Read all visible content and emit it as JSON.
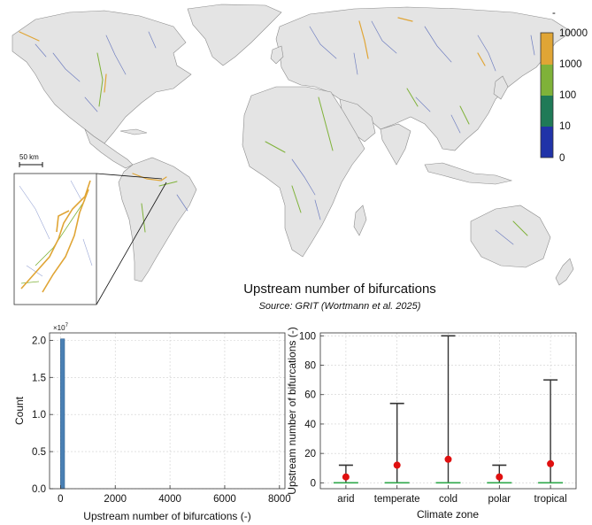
{
  "map_figure": {
    "title": "Upstream number of bifurcations",
    "source": "Source: GRIT (Wortmann et al. 2025)",
    "scale_bar_label": "50 km",
    "colorbar": {
      "labels": [
        "10000",
        "1000",
        "100",
        "10",
        "0"
      ],
      "colors": [
        "#e0a535",
        "#7fb239",
        "#1f7a57",
        "#2033a8"
      ],
      "top_mark": "-"
    },
    "colors": {
      "land": "#e4e4e4",
      "coast": "#8c8c8c",
      "river": "#6f7ec0"
    }
  },
  "chart_data": [
    {
      "type": "bar",
      "title": "",
      "xlabel": "Upstream number of bifurcations (-)",
      "ylabel": "Count",
      "y_multiplier_label": "×10",
      "y_multiplier_exponent": "7",
      "xlim": [
        -400,
        8200
      ],
      "ylim": [
        0,
        2.1
      ],
      "x_ticks": [
        0,
        2000,
        4000,
        6000,
        8000
      ],
      "x_tick_labels": [
        "0",
        "2000",
        "4000",
        "6000",
        "8000"
      ],
      "y_ticks": [
        0,
        0.5,
        1,
        1.5,
        2
      ],
      "y_tick_labels": [
        "0.0",
        "0.5",
        "1.0",
        "1.5",
        "2.0"
      ],
      "bins": [
        {
          "x_start": 0,
          "x_end": 150,
          "value": 2.02
        }
      ],
      "bar_color": "#4a80b4",
      "grid": true
    },
    {
      "type": "scatter",
      "title": "",
      "xlabel": "Climate zone",
      "ylabel": "Upstream number of bifurcations (-)",
      "categories": [
        "arid",
        "temperate",
        "cold",
        "polar",
        "tropical"
      ],
      "ylim": [
        -4,
        102
      ],
      "y_ticks": [
        0,
        20,
        40,
        60,
        80,
        100
      ],
      "y_tick_labels": [
        "0",
        "20",
        "40",
        "60",
        "80",
        "100"
      ],
      "whisker_low": [
        0,
        0,
        0,
        0,
        0
      ],
      "whisker_high": [
        12,
        54,
        100,
        12,
        70
      ],
      "mean": [
        4,
        12,
        16,
        4,
        13
      ],
      "median": [
        0,
        0,
        0,
        0,
        0
      ],
      "mean_color": "#e01010",
      "median_color": "#2ea84a",
      "whisker_color": "#333333",
      "grid": true
    }
  ]
}
